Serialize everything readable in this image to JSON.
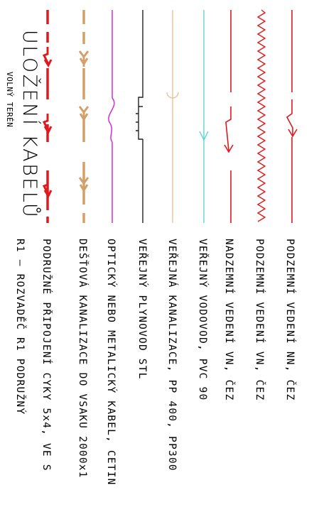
{
  "legend": [
    {
      "label": "PODZEMNÍ VEDENÍ NN, ČEZ",
      "color": "#e0191f",
      "style": "line-arrow-symbol"
    },
    {
      "label": "PODZEMNÍ VEDENÍ VN, ČEZ",
      "color": "#e0191f",
      "style": "zigzag"
    },
    {
      "label": "NADZEMNÍ VEDENÍ VN, ČEZ",
      "color": "#e0191f",
      "style": "line-bolt-symbol"
    },
    {
      "label": "VEŘEJNÝ VODOVOD, PVC 90",
      "color": "#5fd6d0",
      "style": "line-arrow"
    },
    {
      "label": "VEŘEJNÁ KANALIZACE, PP 400, PP300",
      "color": "#e8c19a",
      "style": "line-cup"
    },
    {
      "label": "VEŘEJNÝ PLYNOVOD STL",
      "color": "#222222",
      "style": "line-step"
    },
    {
      "label": "OPTICKÝ NEBO METALICKÝ KABEL, CETIN",
      "color": "#d21fd2",
      "style": "line-wave"
    },
    {
      "label": "DEŠŤOVÁ KANALIZACE DO VSAKU 2000x1",
      "color": "#d4a06a",
      "style": "dashed-y"
    },
    {
      "label": "PODRUŽNÉ PŘIPOJENÍ CYKY 5x4, VE S",
      "color": "#e0191f",
      "style": "dashed-red"
    }
  ],
  "note": "R1 – ROZVADĚČ R1 PODRUŽNÝ",
  "title": "ULOŽENÍ KABELŮ",
  "subtitle": "VOLNÝ TERÉN"
}
